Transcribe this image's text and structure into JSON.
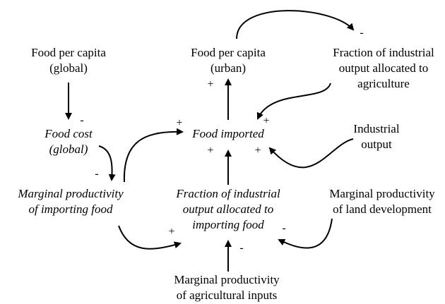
{
  "nodes": [
    {
      "lines": [
        "Food per capita",
        "(global)"
      ]
    },
    {
      "lines": [
        "Food per capita",
        "(urban)"
      ]
    },
    {
      "lines": [
        "Fraction of industrial",
        "output allocated to",
        "agriculture"
      ]
    },
    {
      "lines": [
        "Food cost",
        "(global)"
      ]
    },
    {
      "lines": [
        "Food imported"
      ]
    },
    {
      "lines": [
        "Industrial",
        "output"
      ]
    },
    {
      "lines": [
        "Marginal productivity",
        "of importing food"
      ]
    },
    {
      "lines": [
        "Fraction of industrial",
        "output allocated to",
        "importing food"
      ]
    },
    {
      "lines": [
        "Marginal productivity",
        "of land development"
      ]
    },
    {
      "lines": [
        "Marginal productivity",
        "of agricultural inputs"
      ]
    }
  ],
  "links": [
    {
      "sign": "-"
    },
    {
      "sign": "-"
    },
    {
      "sign": "+"
    },
    {
      "sign": "+"
    },
    {
      "sign": "-"
    },
    {
      "sign": "+"
    },
    {
      "sign": "+"
    },
    {
      "sign": "+"
    },
    {
      "sign": "+"
    },
    {
      "sign": "-"
    },
    {
      "sign": "-"
    }
  ]
}
